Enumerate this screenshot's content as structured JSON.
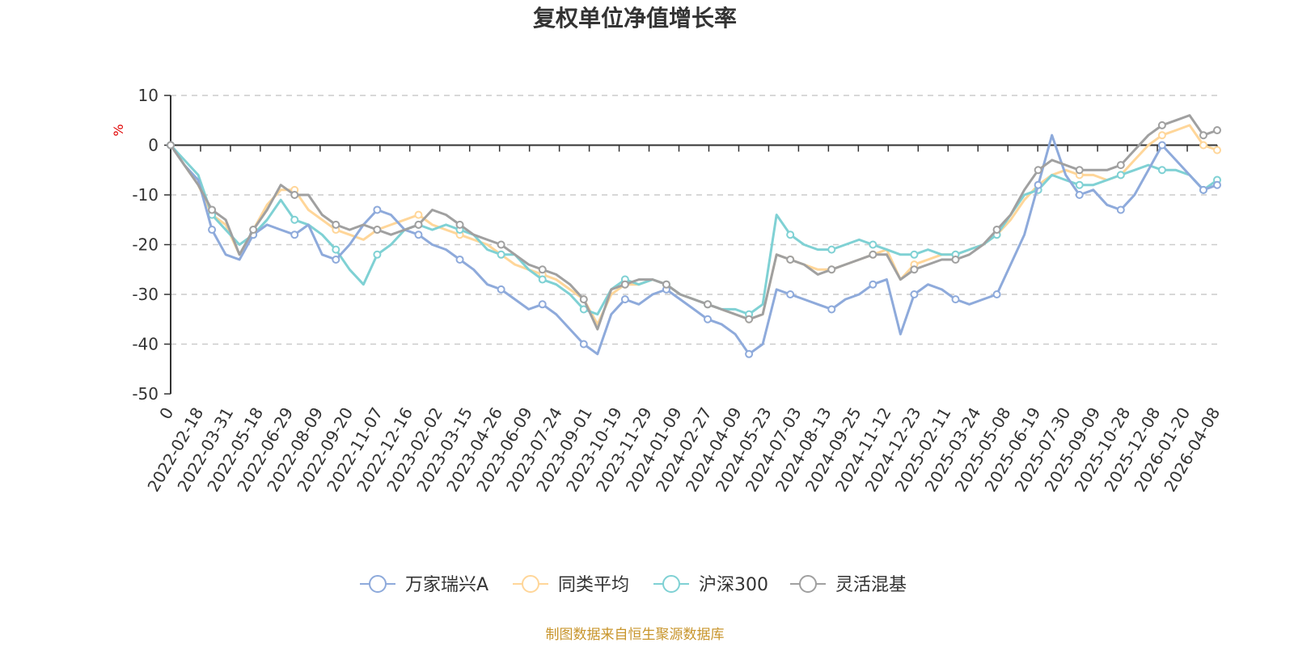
{
  "chart_data": {
    "type": "line",
    "title": "复权单位净值增长率",
    "ylabel": "%",
    "ylim": [
      -50,
      10
    ],
    "yticks": [
      10,
      0,
      -10,
      -20,
      -30,
      -40,
      -50
    ],
    "grid": true,
    "legend_position": "bottom-center",
    "x_labels": [
      "0",
      "2022-02-18",
      "2022-03-31",
      "2022-05-18",
      "2022-06-29",
      "2022-08-09",
      "2022-09-20",
      "2022-11-07",
      "2022-12-16",
      "2023-02-02",
      "2023-03-15",
      "2023-04-26",
      "2023-06-09",
      "2023-07-24",
      "2023-09-01",
      "2023-10-19",
      "2023-11-29",
      "2024-01-09",
      "2024-02-27",
      "2024-04-09",
      "2024-05-23",
      "2024-07-03",
      "2024-08-13",
      "2024-09-25",
      "2024-11-12",
      "2024-12-23",
      "2025-02-11",
      "2025-03-24",
      "2025-05-08",
      "2025-06-19",
      "2025-07-30",
      "2025-09-09",
      "2025-10-28",
      "2025-12-08",
      "2026-01-20",
      "2026-04-08"
    ],
    "series": [
      {
        "name": "万家瑞兴A",
        "color": "#8eaadb",
        "values": [
          0,
          -4,
          -7,
          -17,
          -22,
          -23,
          -18,
          -16,
          -17,
          -18,
          -16,
          -22,
          -23,
          -20,
          -16,
          -13,
          -14,
          -17,
          -18,
          -20,
          -21,
          -23,
          -25,
          -28,
          -29,
          -31,
          -33,
          -32,
          -34,
          -37,
          -40,
          -42,
          -34,
          -31,
          -32,
          -30,
          -29,
          -31,
          -33,
          -35,
          -36,
          -38,
          -42,
          -40,
          -29,
          -30,
          -31,
          -32,
          -33,
          -31,
          -30,
          -28,
          -27,
          -38,
          -30,
          -28,
          -29,
          -31,
          -32,
          -31,
          -30,
          -24,
          -18,
          -8,
          2,
          -6,
          -10,
          -9,
          -12,
          -13,
          -10,
          -5,
          0,
          -3,
          -6,
          -9,
          -8
        ]
      },
      {
        "name": "同类平均",
        "color": "#ffd699",
        "values": [
          0,
          -4,
          -8,
          -14,
          -16,
          -22,
          -17,
          -12,
          -9,
          -9,
          -13,
          -15,
          -17,
          -18,
          -19,
          -17,
          -16,
          -15,
          -14,
          -16,
          -17,
          -18,
          -19,
          -20,
          -22,
          -24,
          -25,
          -26,
          -27,
          -29,
          -31,
          -36,
          -30,
          -28,
          -28,
          -27,
          -28,
          -30,
          -31,
          -32,
          -33,
          -34,
          -35,
          -34,
          -22,
          -23,
          -24,
          -25,
          -25,
          -24,
          -23,
          -22,
          -21,
          -27,
          -24,
          -23,
          -22,
          -22,
          -21,
          -20,
          -18,
          -15,
          -11,
          -8,
          -6,
          -5,
          -6,
          -6,
          -7,
          -6,
          -3,
          0,
          2,
          3,
          4,
          0,
          -1
        ]
      },
      {
        "name": "沪深300",
        "color": "#7fd1d4",
        "values": [
          0,
          -3,
          -6,
          -14,
          -17,
          -20,
          -18,
          -15,
          -11,
          -15,
          -16,
          -18,
          -21,
          -25,
          -28,
          -22,
          -20,
          -17,
          -16,
          -17,
          -16,
          -17,
          -18,
          -21,
          -22,
          -22,
          -25,
          -27,
          -28,
          -30,
          -33,
          -34,
          -29,
          -27,
          -28,
          -27,
          -28,
          -30,
          -31,
          -32,
          -33,
          -33,
          -34,
          -32,
          -14,
          -18,
          -20,
          -21,
          -21,
          -20,
          -19,
          -20,
          -21,
          -22,
          -22,
          -21,
          -22,
          -22,
          -21,
          -20,
          -18,
          -14,
          -10,
          -9,
          -6,
          -7,
          -8,
          -8,
          -7,
          -6,
          -5,
          -4,
          -5,
          -5,
          -6,
          -9,
          -7
        ]
      },
      {
        "name": "灵活混基",
        "color": "#a0a0a0",
        "values": [
          0,
          -4,
          -8,
          -13,
          -15,
          -22,
          -17,
          -13,
          -8,
          -10,
          -10,
          -14,
          -16,
          -17,
          -16,
          -17,
          -18,
          -17,
          -16,
          -13,
          -14,
          -16,
          -18,
          -19,
          -20,
          -22,
          -24,
          -25,
          -26,
          -28,
          -31,
          -37,
          -29,
          -28,
          -27,
          -27,
          -28,
          -30,
          -31,
          -32,
          -33,
          -34,
          -35,
          -34,
          -22,
          -23,
          -24,
          -26,
          -25,
          -24,
          -23,
          -22,
          -22,
          -27,
          -25,
          -24,
          -23,
          -23,
          -22,
          -20,
          -17,
          -14,
          -9,
          -5,
          -3,
          -4,
          -5,
          -5,
          -5,
          -4,
          -1,
          2,
          4,
          5,
          6,
          2,
          3
        ]
      }
    ]
  },
  "source_text": "制图数据来自恒生聚源数据库"
}
